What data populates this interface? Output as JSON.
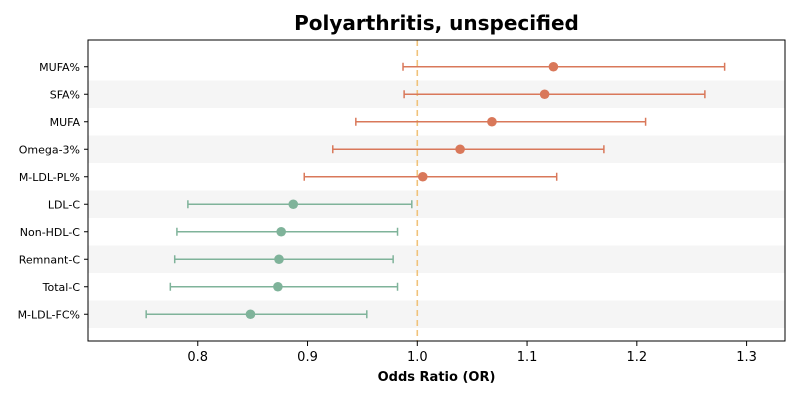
{
  "chart_data": {
    "type": "forest",
    "title": "Polyarthritis, unspecified",
    "xlabel": "Odds Ratio (OR)",
    "ylabel": "",
    "xlim": [
      0.7,
      1.335
    ],
    "xticks": [
      0.8,
      0.9,
      1.0,
      1.1,
      1.2,
      1.3
    ],
    "xtick_labels": [
      "0.8",
      "0.9",
      "1.0",
      "1.1",
      "1.2",
      "1.3"
    ],
    "reference_line": 1.0,
    "grid": false,
    "colors": {
      "positive": "#d9785a",
      "negative": "#7fb39a",
      "reference": "#f0c27a",
      "band": "#f5f5f5"
    },
    "rows": [
      {
        "label": "MUFA%",
        "or": 1.124,
        "lo": 0.987,
        "hi": 1.28
      },
      {
        "label": "SFA%",
        "or": 1.116,
        "lo": 0.988,
        "hi": 1.262
      },
      {
        "label": "MUFA",
        "or": 1.068,
        "lo": 0.944,
        "hi": 1.208
      },
      {
        "label": "Omega-3%",
        "or": 1.039,
        "lo": 0.923,
        "hi": 1.17
      },
      {
        "label": "M-LDL-PL%",
        "or": 1.005,
        "lo": 0.897,
        "hi": 1.127
      },
      {
        "label": "LDL-C",
        "or": 0.887,
        "lo": 0.791,
        "hi": 0.995
      },
      {
        "label": "Non-HDL-C",
        "or": 0.876,
        "lo": 0.781,
        "hi": 0.982
      },
      {
        "label": "Remnant-C",
        "or": 0.874,
        "lo": 0.779,
        "hi": 0.978
      },
      {
        "label": "Total-C",
        "or": 0.873,
        "lo": 0.775,
        "hi": 0.982
      },
      {
        "label": "M-LDL-FC%",
        "or": 0.848,
        "lo": 0.753,
        "hi": 0.954
      }
    ]
  }
}
